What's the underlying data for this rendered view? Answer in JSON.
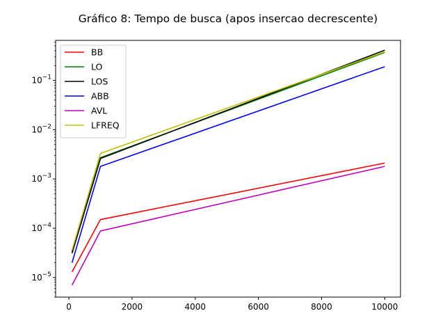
{
  "chart_data": {
    "type": "line",
    "title": "Gráfico 8: Tempo de busca (apos insercao decrescente)",
    "xlabel": "",
    "ylabel": "",
    "x": [
      100,
      1000,
      10000
    ],
    "xlim": [
      -420,
      10500
    ],
    "ylim": [
      4e-06,
      0.65
    ],
    "y_scale": "log",
    "x_ticks": [
      0,
      2000,
      4000,
      6000,
      8000,
      10000
    ],
    "x_tick_labels": [
      "0",
      "2000",
      "4000",
      "6000",
      "8000",
      "10000"
    ],
    "y_ticks": [
      {
        "base": "10",
        "exp": "−5",
        "value": 1e-05
      },
      {
        "base": "10",
        "exp": "−4",
        "value": 0.0001
      },
      {
        "base": "10",
        "exp": "−3",
        "value": 0.001
      },
      {
        "base": "10",
        "exp": "−2",
        "value": 0.01
      },
      {
        "base": "10",
        "exp": "−1",
        "value": 0.1
      }
    ],
    "grid": false,
    "legend_position": "top-left",
    "series": [
      {
        "name": "BB",
        "color": "#ff0000",
        "values": [
          1.3e-05,
          0.00015,
          0.0021
        ]
      },
      {
        "name": "LO",
        "color": "#008000",
        "values": [
          3.3e-05,
          0.0027,
          0.37
        ]
      },
      {
        "name": "LOS",
        "color": "#000000",
        "values": [
          3.1e-05,
          0.0026,
          0.41
        ]
      },
      {
        "name": "ABB",
        "color": "#0000ff",
        "values": [
          2e-05,
          0.0018,
          0.19
        ]
      },
      {
        "name": "AVL",
        "color": "#bf00bf",
        "values": [
          7e-06,
          8.8e-05,
          0.0018
        ]
      },
      {
        "name": "LFREQ",
        "color": "#bfbf00",
        "values": [
          3.6e-05,
          0.0033,
          0.38
        ]
      }
    ]
  }
}
